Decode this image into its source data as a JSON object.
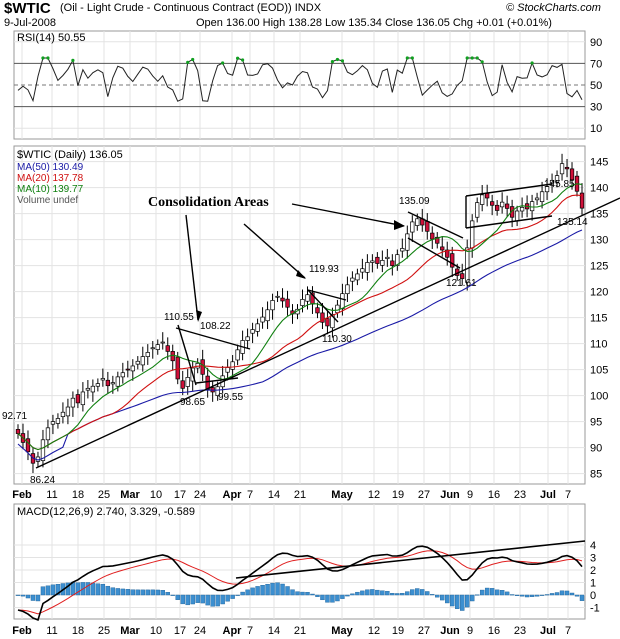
{
  "header": {
    "ticker": "$WTIC",
    "description": "(Oil - Light Crude - Continuous Contract (EOD)) INDX",
    "brand": "© StockCharts.com",
    "date": "9-Jul-2008",
    "ohlc": "Open 136.00 High 138.28 Low 135.34 Close 136.05 Chg +0.01 (+0.01%)"
  },
  "rsi": {
    "label": "RSI(14) 50.55",
    "ticks": [
      "90",
      "70",
      "50",
      "30",
      "10"
    ],
    "levels": [
      90,
      70,
      50,
      30,
      10
    ]
  },
  "price_legend": {
    "title": "$WTIC (Daily) 136.05",
    "ma50": "MA(50) 130.49",
    "ma20": "MA(20) 137.78",
    "ma10": "MA(10) 139.77",
    "volume": "Volume undef"
  },
  "macd": {
    "label": "MACD(12,26,9) 2.740, 3.329, -0.589",
    "ticks": [
      "4",
      "3",
      "2",
      "1",
      "0",
      "-1"
    ],
    "levels": [
      4,
      3,
      2,
      1,
      0,
      -1
    ]
  },
  "annotations": {
    "consolidation": "Consolidation Areas",
    "points": [
      "92.71",
      "86.24",
      "110.55",
      "108.22",
      "98.65",
      "99.55",
      "119.93",
      "110.30",
      "135.09",
      "121.61",
      "145.85",
      "135.14"
    ]
  },
  "colors": {
    "ma50": "#1a1aa6",
    "ma20": "#d01010",
    "ma10": "#108010",
    "up": "#ffffff",
    "down": "#d0103a",
    "histogram": "#3c8fd0",
    "signal": "#e02020",
    "frame": "#9a9a9a"
  },
  "chart_data": {
    "type": "line",
    "title": "$WTIC (Daily) 136.05",
    "x_labels": [
      "Feb",
      "11",
      "18",
      "25",
      "Mar",
      "10",
      "17",
      "24",
      "Apr",
      "7",
      "14",
      "21",
      "May",
      "12",
      "19",
      "27",
      "Jun",
      "9",
      "16",
      "23",
      "Jul",
      "7"
    ],
    "y_ticks": [
      85,
      90,
      95,
      100,
      105,
      110,
      115,
      120,
      125,
      130,
      135,
      140,
      145
    ],
    "ylim": [
      83,
      148
    ],
    "closes": [
      92.7,
      91.0,
      89.2,
      87.0,
      88.2,
      91.5,
      93.8,
      95.0,
      95.6,
      96.8,
      97.8,
      99.5,
      98.6,
      100.7,
      101.4,
      101.8,
      102.3,
      103.3,
      101.9,
      102.5,
      103.6,
      104.4,
      105.1,
      105.7,
      106.6,
      107.5,
      108.3,
      109.2,
      109.8,
      110.3,
      108.5,
      106.7,
      103.2,
      101.4,
      103.5,
      105.3,
      106.2,
      104.1,
      101.2,
      100.7,
      101.7,
      103.8,
      105.4,
      106.5,
      108.8,
      110.6,
      111.3,
      112.7,
      113.8,
      115.1,
      116.5,
      118.3,
      119.1,
      118.2,
      117.0,
      115.7,
      116.6,
      118.5,
      119.4,
      117.6,
      115.9,
      114.1,
      113.4,
      115.6,
      117.4,
      119.6,
      121.3,
      122.6,
      123.4,
      124.4,
      125.6,
      125.9,
      125.4,
      126.0,
      126.6,
      125.0,
      127.1,
      128.3,
      131.1,
      133.4,
      134.0,
      132.8,
      131.6,
      130.1,
      129.3,
      128.0,
      126.6,
      124.7,
      123.1,
      122.5,
      128.4,
      133.6,
      137.1,
      138.6,
      138.0,
      136.6,
      135.6,
      137.2,
      136.0,
      134.3,
      135.5,
      136.2,
      135.9,
      137.3,
      138.0,
      139.2,
      140.2,
      141.4,
      142.3,
      144.6,
      143.6,
      141.5,
      139.3,
      136.05
    ],
    "series": [
      {
        "name": "MA(50) 130.49"
      },
      {
        "name": "MA(20) 137.78"
      },
      {
        "name": "MA(10) 139.77"
      }
    ]
  }
}
